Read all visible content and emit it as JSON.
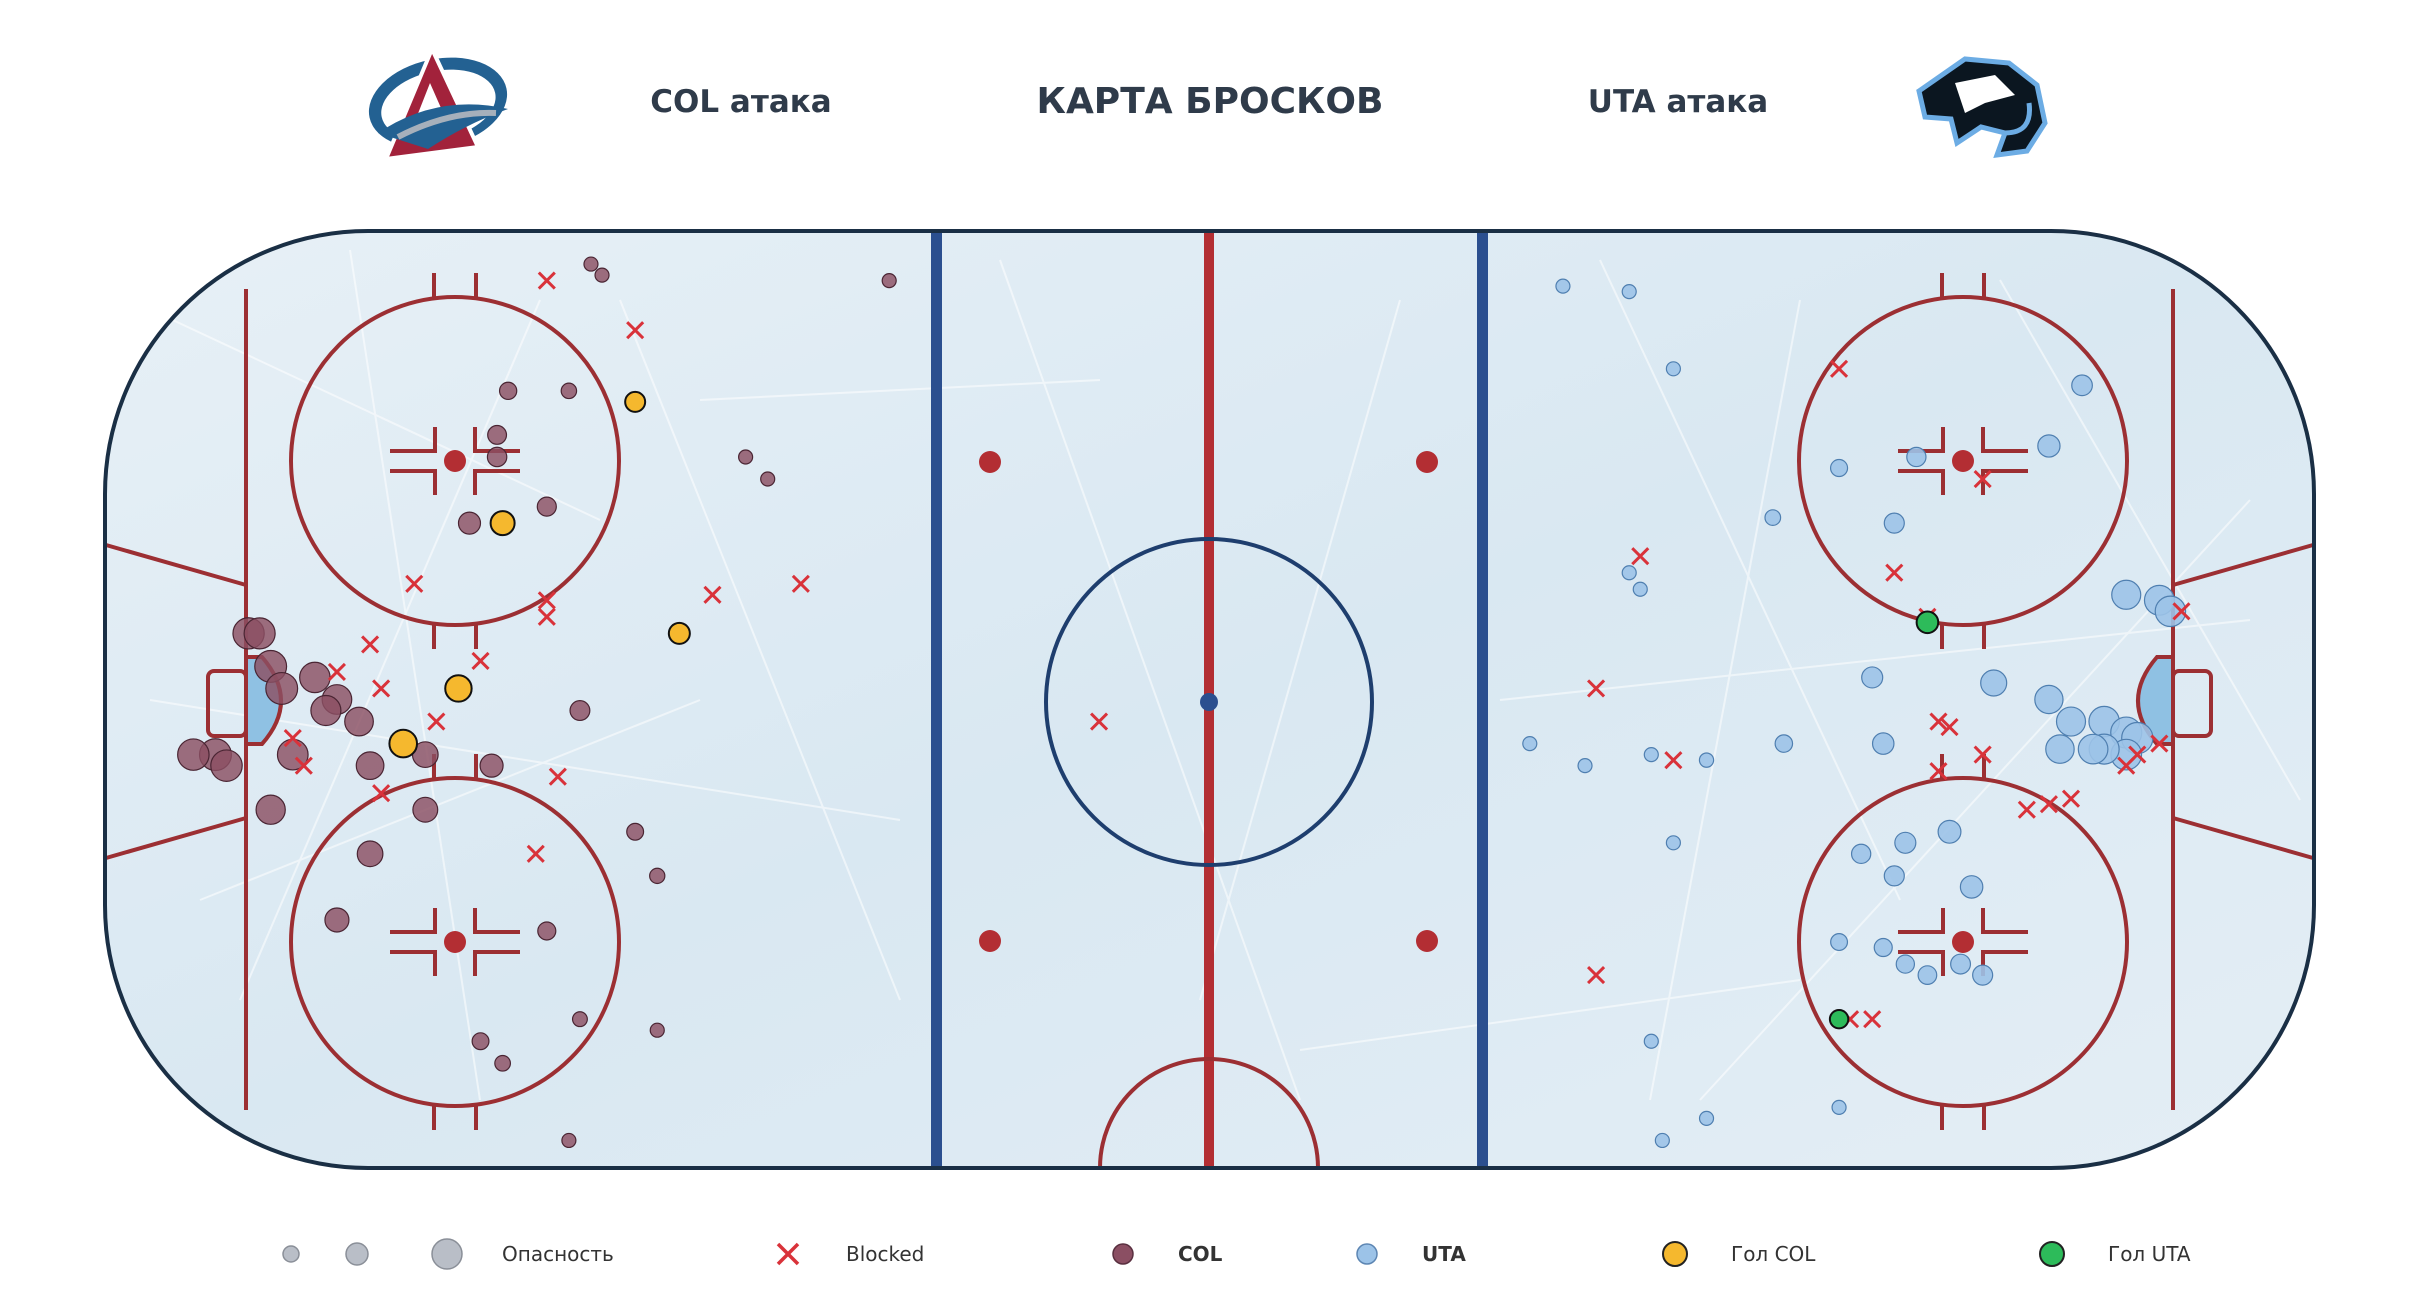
{
  "header": {
    "title": "КАРТА БРОСКОВ",
    "left_label": "COL атака",
    "right_label": "UTA атака",
    "left_logo": "colorado-avalanche-logo",
    "right_logo": "utah-mammoth-logo"
  },
  "legend": {
    "danger_label": "Опасность",
    "blocked_label": "Blocked",
    "col_label": "COL",
    "uta_label": "UTA",
    "goal_col_label": "Гол COL",
    "goal_uta_label": "Гол UTA"
  },
  "colors": {
    "col": "#8b4f63",
    "uta": "#9cc3e8",
    "goal_col": "#f5b82e",
    "goal_uta": "#2dbb5a",
    "blocked": "#d9323a",
    "rink_red": "#9c2f33",
    "rink_blue": "#2b4f8f",
    "board": "#1a2f45"
  },
  "chart_data": {
    "type": "scatter",
    "title": "КАРТА БРОСКОВ",
    "xlim": [
      -100,
      100
    ],
    "ylim": [
      -42.5,
      42.5
    ],
    "grid": false,
    "legend_position": "bottom",
    "series": [
      {
        "name": "COL",
        "points": [
          [
            -56,
            39.5
          ],
          [
            -55,
            38.5
          ],
          [
            -29,
            38
          ],
          [
            -58,
            28
          ],
          [
            -63.5,
            28
          ],
          [
            -64.5,
            24
          ],
          [
            -64.5,
            22
          ],
          [
            -42,
            22
          ],
          [
            -40,
            20
          ],
          [
            -60,
            17.5
          ],
          [
            -67,
            16
          ],
          [
            -87,
            6
          ],
          [
            -86,
            6
          ],
          [
            -85,
            3
          ],
          [
            -84,
            1
          ],
          [
            -81,
            2
          ],
          [
            -79,
            0
          ],
          [
            -80,
            -1
          ],
          [
            -57,
            -1
          ],
          [
            -90,
            -5
          ],
          [
            -83,
            -5
          ],
          [
            -77,
            -2
          ],
          [
            -76,
            -6
          ],
          [
            -71,
            -5
          ],
          [
            -89,
            -6
          ],
          [
            -65,
            -6
          ],
          [
            -92,
            -5
          ],
          [
            -85,
            -10
          ],
          [
            -71,
            -10
          ],
          [
            -76,
            -14
          ],
          [
            -52,
            -12
          ],
          [
            -50,
            -16
          ],
          [
            -60,
            -21
          ],
          [
            -66,
            -31
          ],
          [
            -79,
            -20
          ],
          [
            -57,
            -29
          ],
          [
            -64,
            -33
          ],
          [
            -50,
            -30
          ],
          [
            -58,
            -40
          ]
        ]
      },
      {
        "name": "UTA",
        "points": [
          [
            32,
            37.5
          ],
          [
            38,
            37
          ],
          [
            42,
            30
          ],
          [
            79,
            28.5
          ],
          [
            76,
            23
          ],
          [
            57,
            21
          ],
          [
            64,
            22
          ],
          [
            62,
            16
          ],
          [
            51,
            16.5
          ],
          [
            38,
            11.5
          ],
          [
            39,
            10
          ],
          [
            86,
            9
          ],
          [
            83,
            9.5
          ],
          [
            87,
            8
          ],
          [
            60,
            2
          ],
          [
            71,
            1.5
          ],
          [
            76,
            0
          ],
          [
            78,
            -2
          ],
          [
            81,
            -2
          ],
          [
            83,
            -3
          ],
          [
            84,
            -3.5
          ],
          [
            83,
            -5
          ],
          [
            81,
            -4.5
          ],
          [
            80,
            -4.5
          ],
          [
            77,
            -4.5
          ],
          [
            61,
            -4
          ],
          [
            52,
            -4
          ],
          [
            34,
            -6
          ],
          [
            40,
            -5
          ],
          [
            45,
            -5.5
          ],
          [
            63,
            -13
          ],
          [
            59,
            -14
          ],
          [
            62,
            -16
          ],
          [
            67,
            -12
          ],
          [
            69,
            -17
          ],
          [
            57,
            -22
          ],
          [
            61,
            -22.5
          ],
          [
            63,
            -24
          ],
          [
            65,
            -25
          ],
          [
            68,
            -24
          ],
          [
            70,
            -25
          ],
          [
            40,
            -31
          ],
          [
            41,
            -40
          ],
          [
            45,
            -38
          ],
          [
            57,
            -37
          ],
          [
            29,
            -4
          ],
          [
            42,
            -13
          ]
        ]
      },
      {
        "name": "Гол COL",
        "points": [
          [
            -52,
            27
          ],
          [
            -64,
            16
          ],
          [
            -68,
            1
          ],
          [
            -48,
            6
          ],
          [
            -73,
            -4
          ]
        ]
      },
      {
        "name": "Гол UTA",
        "points": [
          [
            65,
            7
          ],
          [
            57,
            -29
          ]
        ]
      },
      {
        "name": "Blocked",
        "points": [
          [
            -60,
            38
          ],
          [
            -52,
            33.5
          ],
          [
            -72,
            10.5
          ],
          [
            -45,
            9.5
          ],
          [
            -60,
            7.5
          ],
          [
            -76,
            5
          ],
          [
            -66,
            3.5
          ],
          [
            -79,
            2.5
          ],
          [
            -75,
            1
          ],
          [
            -70,
            -2
          ],
          [
            -83,
            -3.5
          ],
          [
            -82,
            -6
          ],
          [
            -59,
            -7
          ],
          [
            -75,
            -8.5
          ],
          [
            -61,
            -14
          ],
          [
            -60,
            9
          ],
          [
            -37,
            10.5
          ],
          [
            -10,
            -2
          ],
          [
            57,
            30
          ],
          [
            70,
            -5
          ],
          [
            39,
            13
          ],
          [
            35,
            1
          ],
          [
            42,
            -5.5
          ],
          [
            62,
            11.5
          ],
          [
            65,
            7.5
          ],
          [
            66,
            -2
          ],
          [
            67,
            -2.5
          ],
          [
            66,
            -6.5
          ],
          [
            74,
            -10
          ],
          [
            78,
            -9
          ],
          [
            83,
            -6
          ],
          [
            84,
            -5
          ],
          [
            86,
            -4
          ],
          [
            88,
            8
          ],
          [
            70,
            20
          ],
          [
            60,
            -29
          ],
          [
            58,
            -29
          ],
          [
            35,
            -25
          ],
          [
            76,
            -9.5
          ]
        ]
      }
    ]
  }
}
